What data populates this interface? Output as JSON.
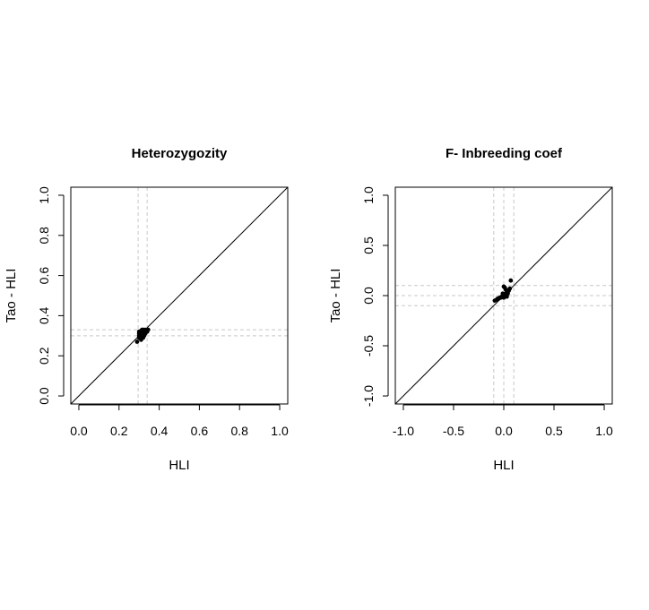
{
  "chart_data": [
    {
      "type": "scatter",
      "title": "Heterozygozity",
      "xlabel": "HLI",
      "ylabel": "Tao - HLI",
      "xlim": [
        -0.04,
        1.04
      ],
      "ylim": [
        -0.04,
        1.04
      ],
      "xticks": [
        0.0,
        0.2,
        0.4,
        0.6,
        0.8,
        1.0
      ],
      "yticks": [
        0.0,
        0.2,
        0.4,
        0.6,
        0.8,
        1.0
      ],
      "xtick_labels": [
        "0.0",
        "0.2",
        "0.4",
        "0.6",
        "0.8",
        "1.0"
      ],
      "ytick_labels": [
        "0.0",
        "0.2",
        "0.4",
        "0.6",
        "0.8",
        "1.0"
      ],
      "grid": false,
      "reference_line": {
        "slope": 1,
        "intercept": 0,
        "color": "#000000"
      },
      "dashed_vlines": [
        0.295,
        0.34
      ],
      "dashed_hlines": [
        0.3,
        0.33
      ],
      "dashed_color": "#c8c8c8",
      "point_color": "#000000",
      "points": [
        {
          "x": 0.29,
          "y": 0.27
        },
        {
          "x": 0.3,
          "y": 0.29
        },
        {
          "x": 0.3,
          "y": 0.3
        },
        {
          "x": 0.3,
          "y": 0.31
        },
        {
          "x": 0.305,
          "y": 0.3
        },
        {
          "x": 0.31,
          "y": 0.28
        },
        {
          "x": 0.31,
          "y": 0.3
        },
        {
          "x": 0.31,
          "y": 0.31
        },
        {
          "x": 0.31,
          "y": 0.32
        },
        {
          "x": 0.315,
          "y": 0.33
        },
        {
          "x": 0.32,
          "y": 0.29
        },
        {
          "x": 0.32,
          "y": 0.31
        },
        {
          "x": 0.32,
          "y": 0.32
        },
        {
          "x": 0.32,
          "y": 0.33
        },
        {
          "x": 0.325,
          "y": 0.3
        },
        {
          "x": 0.33,
          "y": 0.31
        },
        {
          "x": 0.33,
          "y": 0.32
        },
        {
          "x": 0.33,
          "y": 0.33
        },
        {
          "x": 0.34,
          "y": 0.32
        },
        {
          "x": 0.345,
          "y": 0.33
        },
        {
          "x": 0.31,
          "y": 0.325
        },
        {
          "x": 0.3,
          "y": 0.32
        },
        {
          "x": 0.315,
          "y": 0.305
        },
        {
          "x": 0.335,
          "y": 0.325
        }
      ]
    },
    {
      "type": "scatter",
      "title": "F- Inbreeding coef",
      "xlabel": "HLI",
      "ylabel": "Tao - HLI",
      "xlim": [
        -1.08,
        1.08
      ],
      "ylim": [
        -1.08,
        1.08
      ],
      "xticks": [
        -1.0,
        -0.5,
        0.0,
        0.5,
        1.0
      ],
      "yticks": [
        -1.0,
        -0.5,
        0.0,
        0.5,
        1.0
      ],
      "xtick_labels": [
        "-1.0",
        "-0.5",
        "0.0",
        "0.5",
        "1.0"
      ],
      "ytick_labels": [
        "-1.0",
        "-0.5",
        "0.0",
        "0.5",
        "1.0"
      ],
      "grid": false,
      "reference_line": {
        "slope": 1,
        "intercept": 0,
        "color": "#000000"
      },
      "dashed_vlines": [
        -0.1,
        0.0,
        0.1
      ],
      "dashed_hlines": [
        -0.1,
        0.0,
        0.1
      ],
      "dashed_color": "#c8c8c8",
      "point_color": "#000000",
      "points": [
        {
          "x": -0.09,
          "y": -0.05
        },
        {
          "x": -0.07,
          "y": -0.04
        },
        {
          "x": -0.06,
          "y": -0.03
        },
        {
          "x": -0.05,
          "y": -0.03
        },
        {
          "x": -0.04,
          "y": -0.02
        },
        {
          "x": -0.03,
          "y": -0.02
        },
        {
          "x": -0.02,
          "y": -0.01
        },
        {
          "x": -0.01,
          "y": -0.01
        },
        {
          "x": 0.0,
          "y": -0.02
        },
        {
          "x": 0.0,
          "y": 0.0
        },
        {
          "x": 0.01,
          "y": 0.01
        },
        {
          "x": 0.02,
          "y": 0.0
        },
        {
          "x": 0.02,
          "y": 0.02
        },
        {
          "x": 0.03,
          "y": 0.03
        },
        {
          "x": 0.04,
          "y": 0.04
        },
        {
          "x": 0.05,
          "y": 0.05
        },
        {
          "x": 0.06,
          "y": 0.07
        },
        {
          "x": 0.0,
          "y": 0.09
        },
        {
          "x": 0.01,
          "y": 0.08
        },
        {
          "x": 0.02,
          "y": 0.06
        },
        {
          "x": 0.07,
          "y": 0.15
        },
        {
          "x": 0.04,
          "y": 0.02
        },
        {
          "x": -0.01,
          "y": 0.02
        },
        {
          "x": 0.03,
          "y": -0.01
        }
      ]
    }
  ]
}
